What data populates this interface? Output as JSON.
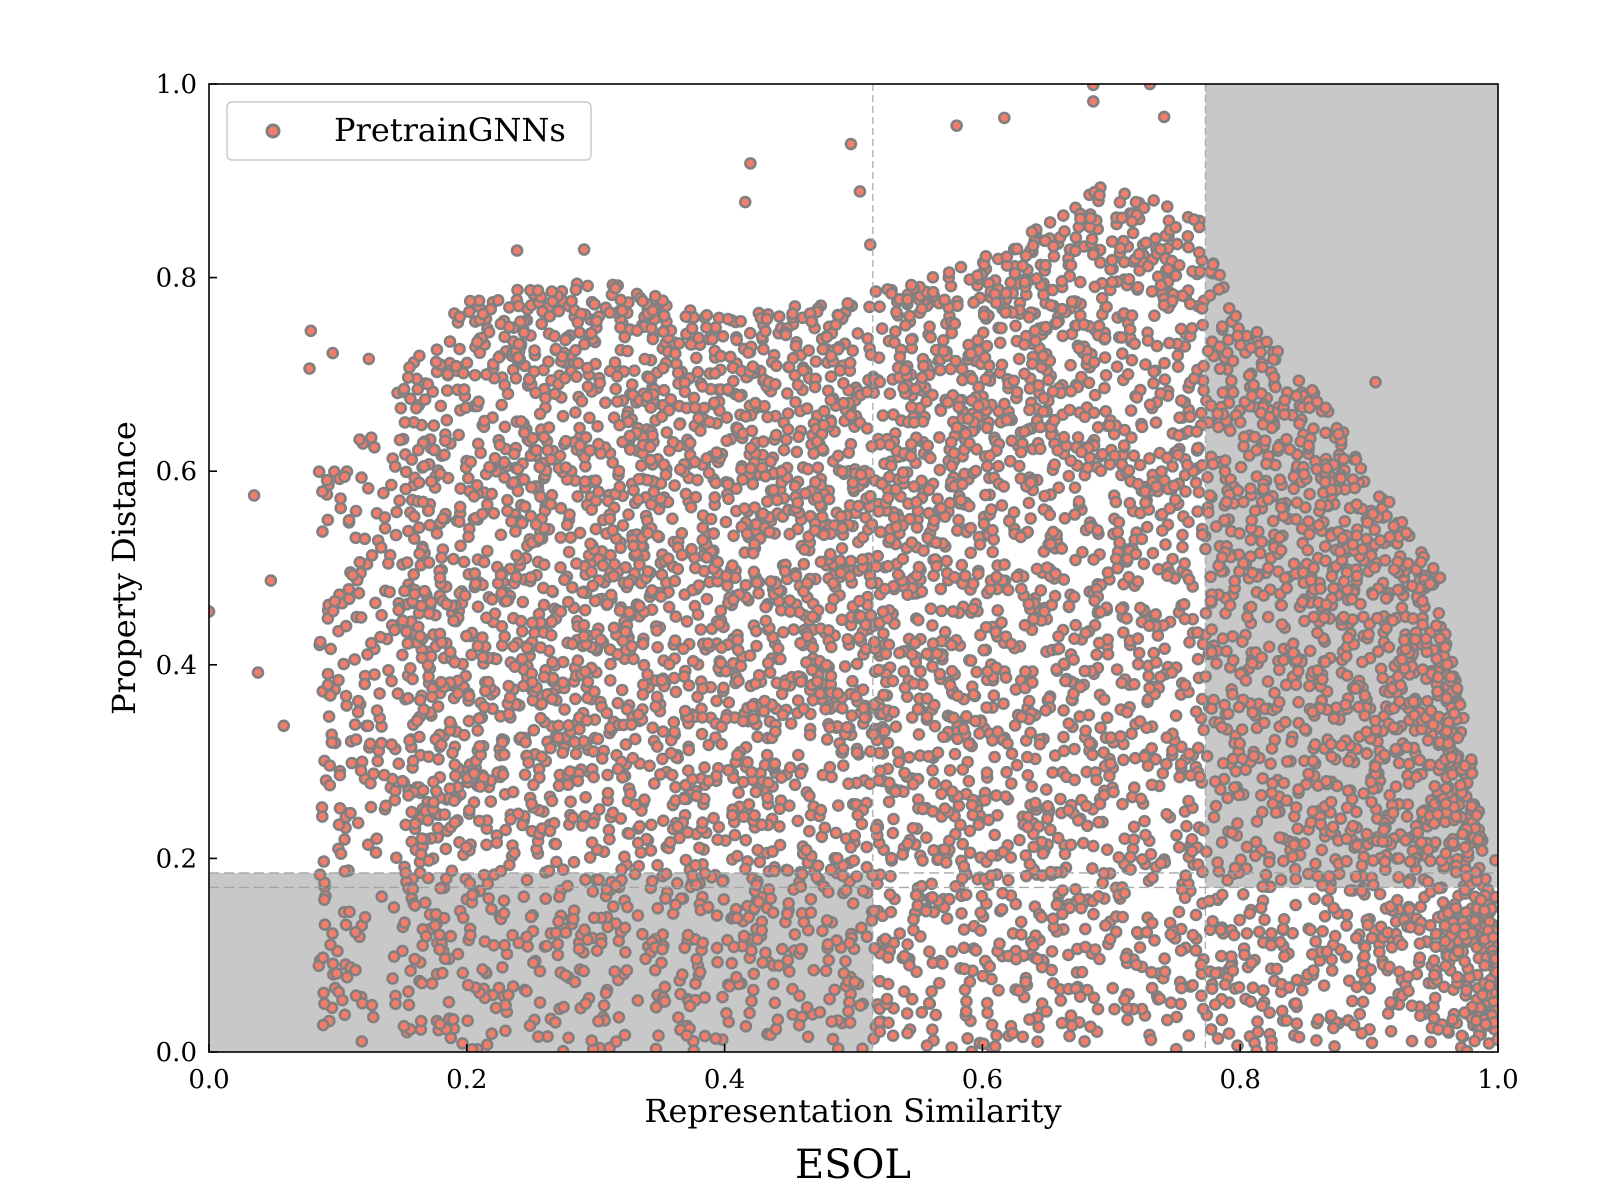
{
  "chart_data": {
    "type": "scatter",
    "caption": "ESOL",
    "xlabel": "Representation Similarity",
    "ylabel": "Property Distance",
    "xlim": [
      0.0,
      1.0
    ],
    "ylim": [
      0.0,
      1.0
    ],
    "xticks": [
      "0.0",
      "0.2",
      "0.4",
      "0.6",
      "0.8",
      "1.0"
    ],
    "yticks": [
      "0.0",
      "0.2",
      "0.4",
      "0.6",
      "0.8",
      "1.0"
    ],
    "grid": false,
    "legend": {
      "position": "top-left",
      "entries": [
        "PretrainGNNs"
      ]
    },
    "colors": {
      "marker_fill": "#f47c6b",
      "marker_edge": "#808080",
      "shade": "#c8c8c8",
      "guide": "#a0a0a0"
    },
    "shaded_regions": [
      {
        "x": [
          0.0,
          0.515
        ],
        "y": [
          0.0,
          0.185
        ]
      },
      {
        "x": [
          0.773,
          1.0
        ],
        "y": [
          0.17,
          1.0
        ]
      }
    ],
    "vertical_lines": [
      0.515,
      0.773
    ],
    "horizontal_lines": [
      0.17,
      0.185
    ],
    "series": [
      {
        "name": "PretrainGNNs",
        "notable_points": [
          {
            "x": 0.0,
            "y": 0.455
          },
          {
            "x": 0.035,
            "y": 0.575
          },
          {
            "x": 0.038,
            "y": 0.392
          },
          {
            "x": 0.048,
            "y": 0.487
          },
          {
            "x": 0.058,
            "y": 0.337
          },
          {
            "x": 0.079,
            "y": 0.745
          },
          {
            "x": 0.078,
            "y": 0.706
          },
          {
            "x": 0.096,
            "y": 0.722
          },
          {
            "x": 0.124,
            "y": 0.716
          },
          {
            "x": 0.239,
            "y": 0.828
          },
          {
            "x": 0.291,
            "y": 0.829
          },
          {
            "x": 0.42,
            "y": 0.918
          },
          {
            "x": 0.416,
            "y": 0.878
          },
          {
            "x": 0.498,
            "y": 0.938
          },
          {
            "x": 0.505,
            "y": 0.889
          },
          {
            "x": 0.513,
            "y": 0.834
          },
          {
            "x": 0.58,
            "y": 0.957
          },
          {
            "x": 0.617,
            "y": 0.965
          },
          {
            "x": 0.686,
            "y": 0.999
          },
          {
            "x": 0.686,
            "y": 0.982
          },
          {
            "x": 0.73,
            "y": 1.0
          },
          {
            "x": 0.741,
            "y": 0.966
          },
          {
            "x": 0.905,
            "y": 0.692
          },
          {
            "x": 0.955,
            "y": 0.49
          },
          {
            "x": 0.998,
            "y": 0.198
          },
          {
            "x": 0.998,
            "y": 0.16
          }
        ],
        "density_envelope": [
          {
            "x": 0.1,
            "y_max": 0.6
          },
          {
            "x": 0.15,
            "y_max": 0.7
          },
          {
            "x": 0.2,
            "y_max": 0.78
          },
          {
            "x": 0.3,
            "y_max": 0.8
          },
          {
            "x": 0.4,
            "y_max": 0.76
          },
          {
            "x": 0.5,
            "y_max": 0.78
          },
          {
            "x": 0.6,
            "y_max": 0.82
          },
          {
            "x": 0.7,
            "y_max": 0.9
          },
          {
            "x": 0.77,
            "y_max": 0.86
          },
          {
            "x": 0.8,
            "y_max": 0.76
          },
          {
            "x": 0.85,
            "y_max": 0.7
          },
          {
            "x": 0.9,
            "y_max": 0.6
          },
          {
            "x": 0.95,
            "y_max": 0.5
          },
          {
            "x": 0.98,
            "y_max": 0.3
          },
          {
            "x": 1.0,
            "y_max": 0.1
          }
        ]
      }
    ]
  }
}
